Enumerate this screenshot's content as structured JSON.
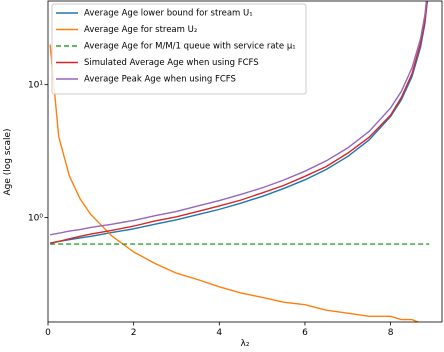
{
  "chart_data": {
    "type": "line",
    "xlabel": "λ₂",
    "ylabel": "Age (log scale)",
    "log_y": true,
    "legend": "upper left",
    "x": [
      0.05,
      0.25,
      0.5,
      0.75,
      1,
      1.5,
      2,
      2.5,
      3,
      3.5,
      4,
      4.5,
      5,
      5.5,
      6,
      6.5,
      7,
      7.5,
      8,
      8.25,
      8.5,
      8.7,
      8.8,
      8.9
    ],
    "xlim": [
      0,
      9.2
    ],
    "xticks": [
      0,
      2,
      4,
      6,
      8
    ],
    "ylim": [
      0.163,
      42.7
    ],
    "yticks": [
      {
        "value": 1,
        "label": "10⁰"
      },
      {
        "value": 10,
        "label": "10¹"
      }
    ],
    "series": [
      {
        "name": "Average Age lower bound for stream U₁",
        "color": "#1f77b4",
        "dash": false,
        "values": [
          0.64,
          0.66,
          0.68,
          0.7,
          0.72,
          0.77,
          0.82,
          0.89,
          0.96,
          1.05,
          1.15,
          1.28,
          1.44,
          1.65,
          1.92,
          2.3,
          2.88,
          3.84,
          5.76,
          7.68,
          11.52,
          19.2,
          28.8,
          57.6
        ]
      },
      {
        "name": "Average Age for stream U₂",
        "color": "#ff7f0e",
        "dash": false,
        "values": [
          20.05,
          4.05,
          2.05,
          1.38,
          1.05,
          0.72,
          0.55,
          0.45,
          0.38,
          0.34,
          0.3,
          0.27,
          0.25,
          0.23,
          0.22,
          0.2,
          0.19,
          0.18,
          0.18,
          0.17,
          0.17,
          0.16,
          0.16,
          0.16
        ]
      },
      {
        "name": "Average Age for M/M/1 queue with service rate μ₁",
        "color": "#2ca02c",
        "dash": true,
        "values": [
          0.63,
          0.63,
          0.63,
          0.63,
          0.63,
          0.63,
          0.63,
          0.63,
          0.63,
          0.63,
          0.63,
          0.63,
          0.63,
          0.63,
          0.63,
          0.63,
          0.63,
          0.63,
          0.63,
          0.63,
          0.63,
          0.63,
          0.63,
          0.63
        ]
      },
      {
        "name": "Simulated Average Age when using FCFS",
        "color": "#d62728",
        "dash": false,
        "values": [
          0.64,
          0.66,
          0.69,
          0.72,
          0.75,
          0.8,
          0.86,
          0.94,
          1.01,
          1.11,
          1.22,
          1.35,
          1.53,
          1.74,
          2.04,
          2.42,
          3.05,
          4.02,
          5.9,
          8.0,
          12.1,
          20.5,
          30.0,
          58
        ]
      },
      {
        "name": "Average Peak Age when using FCFS",
        "color": "#9467bd",
        "dash": false,
        "values": [
          0.74,
          0.76,
          0.79,
          0.81,
          0.84,
          0.89,
          0.95,
          1.03,
          1.11,
          1.22,
          1.34,
          1.49,
          1.67,
          1.91,
          2.23,
          2.67,
          3.34,
          4.45,
          6.68,
          8.9,
          13.4,
          22.3,
          33.4,
          66.8
        ]
      }
    ]
  }
}
